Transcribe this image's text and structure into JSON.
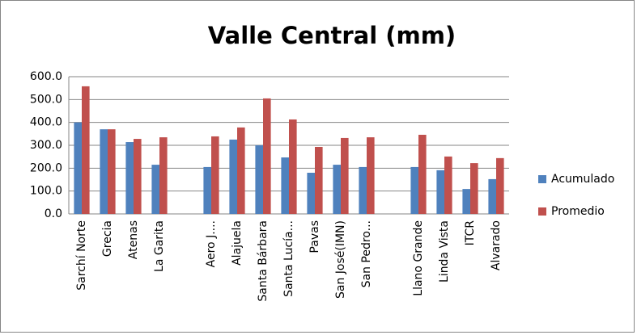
{
  "chart_data": {
    "type": "bar",
    "title": "Valle Central (mm)",
    "categories": [
      "Sarchí Norte",
      "Grecia",
      "Atenas",
      "La Garita",
      null,
      "Aero J....",
      "Alajuela",
      "Santa Bárbara",
      "Santa Lucía...",
      "Pavas",
      "San José(IMN)",
      "San Pedro...",
      null,
      "Llano Grande",
      "Linda Vista",
      "ITCR",
      "Alvarado"
    ],
    "series": [
      {
        "name": "Acumulado",
        "color": "#4f81bd",
        "values": [
          400,
          370,
          314,
          215,
          null,
          205,
          325,
          300,
          247,
          180,
          215,
          205,
          null,
          205,
          191,
          109,
          152
        ]
      },
      {
        "name": "Promedio",
        "color": "#c0504d",
        "values": [
          558,
          370,
          328,
          335,
          null,
          339,
          378,
          505,
          413,
          293,
          332,
          335,
          null,
          346,
          251,
          222,
          244
        ]
      }
    ],
    "ylim": [
      0,
      600
    ],
    "yticks": [
      {
        "value": 0,
        "label": "0.0"
      },
      {
        "value": 100,
        "label": "100.0"
      },
      {
        "value": 200,
        "label": "200.0"
      },
      {
        "value": 300,
        "label": "300.0"
      },
      {
        "value": 400,
        "label": "400.0"
      },
      {
        "value": 500,
        "label": "500.0"
      },
      {
        "value": 600,
        "label": "600.0"
      }
    ],
    "grid": true,
    "legend": "right"
  }
}
